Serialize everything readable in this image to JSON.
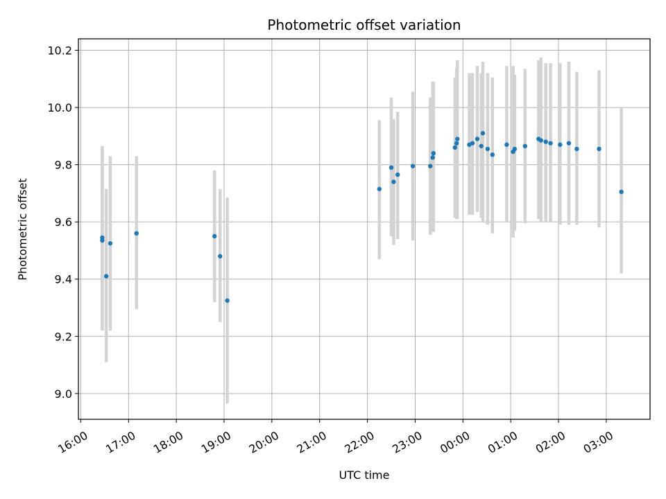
{
  "chart_data": {
    "type": "scatter",
    "title": "Photometric offset variation",
    "xlabel": "UTC time",
    "ylabel": "Photometric offset",
    "x_is_time": true,
    "x_ticks": [
      {
        "t": "16:00",
        "label": "16:00"
      },
      {
        "t": "17:00",
        "label": "17:00"
      },
      {
        "t": "18:00",
        "label": "18:00"
      },
      {
        "t": "19:00",
        "label": "19:00"
      },
      {
        "t": "20:00",
        "label": "20:00"
      },
      {
        "t": "21:00",
        "label": "21:00"
      },
      {
        "t": "22:00",
        "label": "22:00"
      },
      {
        "t": "23:00",
        "label": "23:00"
      },
      {
        "t": "24:00",
        "label": "00:00"
      },
      {
        "t": "25:00",
        "label": "01:00"
      },
      {
        "t": "26:00",
        "label": "02:00"
      },
      {
        "t": "27:00",
        "label": "03:00"
      }
    ],
    "xlim": [
      "15:57",
      "27:55"
    ],
    "y_ticks": [
      9.0,
      9.2,
      9.4,
      9.6,
      9.8,
      10.0,
      10.2
    ],
    "y_tick_labels": [
      "9.0",
      "9.2",
      "9.4",
      "9.6",
      "9.8",
      "10.0",
      "10.2"
    ],
    "ylim": [
      8.91,
      10.24
    ],
    "grid": true,
    "colors": {
      "point": "#1f77b4",
      "errorbar": "#d3d3d3",
      "grid": "#b0b0b0",
      "axes": "#000000"
    },
    "series": [
      {
        "points": [
          {
            "x": "16:27",
            "y": 9.535,
            "lo": 9.22,
            "hi": 9.865
          },
          {
            "x": "16:27",
            "y": 9.545,
            "lo": 9.22,
            "hi": 9.85
          },
          {
            "x": "16:32",
            "y": 9.41,
            "lo": 9.11,
            "hi": 9.715
          },
          {
            "x": "16:37",
            "y": 9.525,
            "lo": 9.22,
            "hi": 9.83
          },
          {
            "x": "17:10",
            "y": 9.56,
            "lo": 9.295,
            "hi": 9.83
          },
          {
            "x": "18:48",
            "y": 9.55,
            "lo": 9.32,
            "hi": 9.78
          },
          {
            "x": "18:55",
            "y": 9.48,
            "lo": 9.25,
            "hi": 9.715
          },
          {
            "x": "19:04",
            "y": 9.325,
            "lo": 8.965,
            "hi": 9.685
          },
          {
            "x": "22:15",
            "y": 9.715,
            "lo": 9.47,
            "hi": 9.955
          },
          {
            "x": "22:30",
            "y": 9.79,
            "lo": 9.55,
            "hi": 10.035
          },
          {
            "x": "22:33",
            "y": 9.74,
            "lo": 9.52,
            "hi": 9.96
          },
          {
            "x": "22:38",
            "y": 9.765,
            "lo": 9.54,
            "hi": 9.985
          },
          {
            "x": "22:57",
            "y": 9.795,
            "lo": 9.535,
            "hi": 10.055
          },
          {
            "x": "23:19",
            "y": 9.795,
            "lo": 9.555,
            "hi": 10.035
          },
          {
            "x": "23:22",
            "y": 9.825,
            "lo": 9.565,
            "hi": 10.09
          },
          {
            "x": "23:23",
            "y": 9.84,
            "lo": 9.565,
            "hi": 10.09
          },
          {
            "x": "23:50",
            "y": 9.86,
            "lo": 9.615,
            "hi": 10.105
          },
          {
            "x": "23:52",
            "y": 9.875,
            "lo": 9.61,
            "hi": 10.14
          },
          {
            "x": "23:53",
            "y": 9.89,
            "lo": 9.61,
            "hi": 10.165
          },
          {
            "x": "24:08",
            "y": 9.87,
            "lo": 9.625,
            "hi": 10.12
          },
          {
            "x": "24:12",
            "y": 9.875,
            "lo": 9.625,
            "hi": 10.12
          },
          {
            "x": "24:18",
            "y": 9.89,
            "lo": 9.635,
            "hi": 10.145
          },
          {
            "x": "24:23",
            "y": 9.865,
            "lo": 9.615,
            "hi": 10.12
          },
          {
            "x": "24:25",
            "y": 9.91,
            "lo": 9.6,
            "hi": 10.16
          },
          {
            "x": "24:31",
            "y": 9.855,
            "lo": 9.59,
            "hi": 10.12
          },
          {
            "x": "24:37",
            "y": 9.835,
            "lo": 9.56,
            "hi": 10.105
          },
          {
            "x": "24:55",
            "y": 9.87,
            "lo": 9.6,
            "hi": 10.145
          },
          {
            "x": "25:03",
            "y": 9.845,
            "lo": 9.545,
            "hi": 10.145
          },
          {
            "x": "25:05",
            "y": 9.855,
            "lo": 9.57,
            "hi": 10.115
          },
          {
            "x": "25:18",
            "y": 9.865,
            "lo": 9.595,
            "hi": 10.135
          },
          {
            "x": "25:35",
            "y": 9.89,
            "lo": 9.61,
            "hi": 10.165
          },
          {
            "x": "25:38",
            "y": 9.885,
            "lo": 9.6,
            "hi": 10.175
          },
          {
            "x": "25:44",
            "y": 9.88,
            "lo": 9.6,
            "hi": 10.155
          },
          {
            "x": "25:50",
            "y": 9.875,
            "lo": 9.6,
            "hi": 10.155
          },
          {
            "x": "26:02",
            "y": 9.87,
            "lo": 9.59,
            "hi": 10.155
          },
          {
            "x": "26:13",
            "y": 9.875,
            "lo": 9.59,
            "hi": 10.16
          },
          {
            "x": "26:23",
            "y": 9.855,
            "lo": 9.59,
            "hi": 10.125
          },
          {
            "x": "26:51",
            "y": 9.855,
            "lo": 9.58,
            "hi": 10.13
          },
          {
            "x": "27:19",
            "y": 9.705,
            "lo": 9.42,
            "hi": 10.0
          }
        ]
      }
    ]
  }
}
